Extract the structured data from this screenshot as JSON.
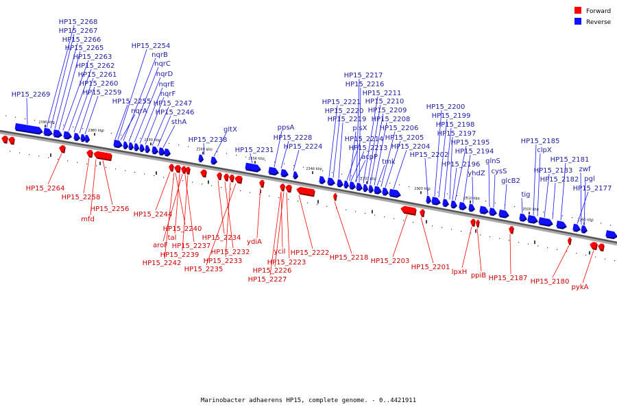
{
  "caption": "Marinobacter adhaerens HP15, complete genome. - 0..4421911",
  "legend": [
    {
      "label": "Forward",
      "color": "#ff0000"
    },
    {
      "label": "Reverse",
      "color": "#1010ff"
    }
  ],
  "ticks": [
    "2390 kbp",
    "2380 kbp",
    "2370 kbp",
    "2360 kbp",
    "2350 kbp",
    "2340 kbp",
    "2330 kbp",
    "2320 kbp",
    "2310 kbp",
    "2300 kbp",
    "2290 kbp"
  ],
  "reverse_labels": [
    "HP15_2268",
    "HP15_2267",
    "HP15_2266",
    "HP15_2265",
    "HP15_2263",
    "HP15_2262",
    "HP15_2261",
    "HP15_2260",
    "HP15_2259",
    "HP15_2269",
    "HP15_2254",
    "nqrB",
    "nqrC",
    "nqrD",
    "nqrE",
    "nqrF",
    "HP15_2255",
    "HP15_2247",
    "nqrA",
    "HP15_2246",
    "sthA",
    "HP15_2238",
    "gltX",
    "HP15_2231",
    "ppsA",
    "HP15_2228",
    "HP15_2224",
    "HP15_2217",
    "HP15_2216",
    "HP15_2211",
    "HP15_2210",
    "HP15_2221",
    "HP15_2220",
    "HP15_2209",
    "HP15_2219",
    "HP15_2208",
    "plsX",
    "HP15_2206",
    "HP15_2214",
    "HP15_2205",
    "HP15_2213",
    "HP15_2204",
    "acpP",
    "tmk",
    "HP15_2202",
    "HP15_2200",
    "HP15_2199",
    "HP15_2198",
    "HP15_2197",
    "HP15_2195",
    "HP15_2194",
    "HP15_2196",
    "glnS",
    "yhdZ",
    "cysS",
    "glcB2",
    "tig",
    "HP15_2185",
    "clpX",
    "HP15_2181",
    "HP15_2183",
    "zwf",
    "HP15_2182",
    "pgl",
    "HP15_2177"
  ],
  "forward_labels": [
    "HP15_2264",
    "HP15_2258",
    "mfd",
    "HP15_2256",
    "HP15_2244",
    "HP15_2240",
    "tal",
    "aroF",
    "HP15_2237",
    "HP15_2239",
    "HP15_2242",
    "HP15_2234",
    "HP15_2232",
    "HP15_2233",
    "HP15_2235",
    "ydiA",
    "yciI",
    "HP15_2222",
    "HP15_2223",
    "HP15_2226",
    "HP15_2227",
    "HP15_2218",
    "HP15_2203",
    "HP15_2201",
    "lpxH",
    "ppiB",
    "HP15_2187",
    "HP15_2180",
    "pykA"
  ]
}
